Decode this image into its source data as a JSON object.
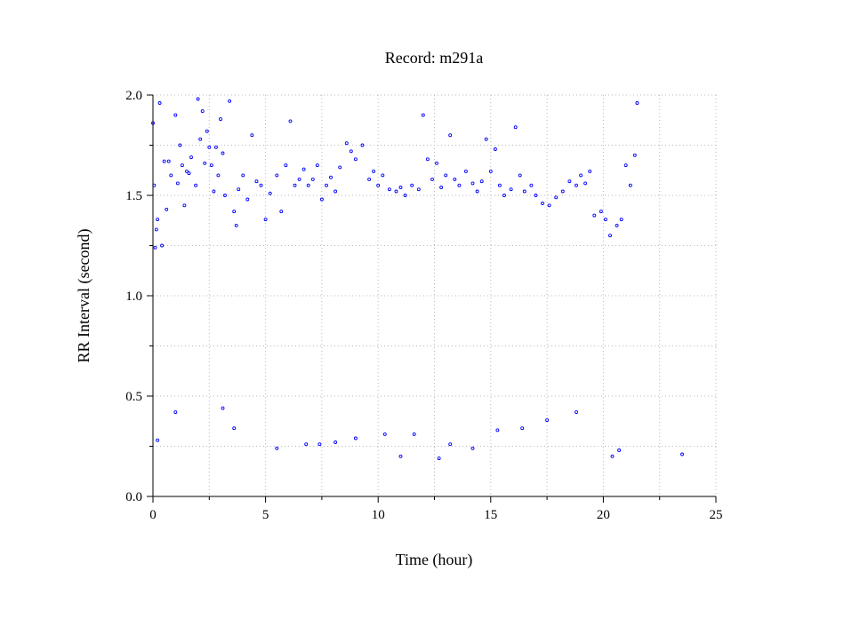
{
  "chart_data": {
    "type": "scatter",
    "title": "Record:  m291a",
    "xlabel": "Time (hour)",
    "ylabel": "RR Interval (second)",
    "xlim": [
      0,
      25
    ],
    "ylim": [
      0.0,
      2.0
    ],
    "x_ticks": [
      0,
      5,
      10,
      15,
      20,
      25
    ],
    "x_tick_labels": [
      "0",
      "5",
      "10",
      "15",
      "20",
      "25"
    ],
    "x_minor_ticks": [
      2.5,
      7.5,
      12.5,
      17.5,
      22.5
    ],
    "y_ticks": [
      0.0,
      0.5,
      1.0,
      1.5,
      2.0
    ],
    "y_tick_labels": [
      "0.0",
      "0.5",
      "1.0",
      "1.5",
      "2.0"
    ],
    "y_minor_ticks": [
      0.25,
      0.75,
      1.25,
      1.75
    ],
    "grid": true,
    "marker": "hollow-circle",
    "color": "#0000ff",
    "series": [
      {
        "points": [
          [
            0.0,
            1.86
          ],
          [
            0.05,
            1.55
          ],
          [
            0.1,
            1.24
          ],
          [
            0.15,
            1.33
          ],
          [
            0.2,
            1.38
          ],
          [
            0.3,
            1.96
          ],
          [
            0.4,
            1.25
          ],
          [
            0.5,
            1.67
          ],
          [
            0.6,
            1.43
          ],
          [
            0.7,
            1.67
          ],
          [
            0.8,
            1.6
          ],
          [
            1.0,
            1.9
          ],
          [
            1.1,
            1.56
          ],
          [
            1.2,
            1.75
          ],
          [
            1.3,
            1.65
          ],
          [
            1.4,
            1.45
          ],
          [
            1.5,
            1.62
          ],
          [
            1.6,
            1.61
          ],
          [
            1.7,
            1.69
          ],
          [
            1.9,
            1.55
          ],
          [
            2.0,
            1.98
          ],
          [
            2.1,
            1.78
          ],
          [
            2.2,
            1.92
          ],
          [
            2.3,
            1.66
          ],
          [
            2.4,
            1.82
          ],
          [
            2.5,
            1.74
          ],
          [
            2.6,
            1.65
          ],
          [
            2.7,
            1.52
          ],
          [
            2.8,
            1.74
          ],
          [
            2.9,
            1.6
          ],
          [
            3.0,
            1.88
          ],
          [
            3.1,
            1.71
          ],
          [
            3.2,
            1.5
          ],
          [
            3.4,
            1.97
          ],
          [
            3.6,
            1.42
          ],
          [
            3.7,
            1.35
          ],
          [
            3.8,
            1.53
          ],
          [
            4.0,
            1.6
          ],
          [
            4.2,
            1.48
          ],
          [
            4.4,
            1.8
          ],
          [
            4.6,
            1.57
          ],
          [
            4.8,
            1.55
          ],
          [
            5.0,
            1.38
          ],
          [
            5.2,
            1.51
          ],
          [
            5.5,
            1.6
          ],
          [
            5.7,
            1.42
          ],
          [
            5.9,
            1.65
          ],
          [
            6.1,
            1.87
          ],
          [
            6.3,
            1.55
          ],
          [
            6.5,
            1.58
          ],
          [
            6.7,
            1.63
          ],
          [
            6.9,
            1.55
          ],
          [
            7.1,
            1.58
          ],
          [
            7.3,
            1.65
          ],
          [
            7.5,
            1.48
          ],
          [
            7.7,
            1.55
          ],
          [
            7.9,
            1.59
          ],
          [
            8.1,
            1.52
          ],
          [
            8.3,
            1.64
          ],
          [
            8.6,
            1.76
          ],
          [
            8.8,
            1.72
          ],
          [
            9.0,
            1.68
          ],
          [
            9.3,
            1.75
          ],
          [
            9.6,
            1.58
          ],
          [
            9.8,
            1.62
          ],
          [
            10.0,
            1.55
          ],
          [
            10.2,
            1.6
          ],
          [
            10.5,
            1.53
          ],
          [
            10.8,
            1.52
          ],
          [
            11.0,
            1.54
          ],
          [
            11.2,
            1.5
          ],
          [
            11.5,
            1.55
          ],
          [
            11.8,
            1.53
          ],
          [
            12.0,
            1.9
          ],
          [
            12.2,
            1.68
          ],
          [
            12.4,
            1.58
          ],
          [
            12.6,
            1.66
          ],
          [
            12.8,
            1.54
          ],
          [
            13.0,
            1.6
          ],
          [
            13.2,
            1.8
          ],
          [
            13.4,
            1.58
          ],
          [
            13.6,
            1.55
          ],
          [
            13.9,
            1.62
          ],
          [
            14.2,
            1.56
          ],
          [
            14.4,
            1.52
          ],
          [
            14.6,
            1.57
          ],
          [
            14.8,
            1.78
          ],
          [
            15.0,
            1.62
          ],
          [
            15.2,
            1.73
          ],
          [
            15.4,
            1.55
          ],
          [
            15.6,
            1.5
          ],
          [
            15.9,
            1.53
          ],
          [
            16.1,
            1.84
          ],
          [
            16.3,
            1.6
          ],
          [
            16.5,
            1.52
          ],
          [
            16.8,
            1.55
          ],
          [
            17.0,
            1.5
          ],
          [
            17.3,
            1.46
          ],
          [
            17.6,
            1.45
          ],
          [
            17.9,
            1.49
          ],
          [
            18.2,
            1.52
          ],
          [
            18.5,
            1.57
          ],
          [
            18.8,
            1.55
          ],
          [
            19.0,
            1.6
          ],
          [
            19.2,
            1.56
          ],
          [
            19.4,
            1.62
          ],
          [
            19.6,
            1.4
          ],
          [
            19.9,
            1.42
          ],
          [
            20.1,
            1.38
          ],
          [
            20.3,
            1.3
          ],
          [
            20.6,
            1.35
          ],
          [
            20.8,
            1.38
          ],
          [
            21.0,
            1.65
          ],
          [
            21.2,
            1.55
          ],
          [
            21.4,
            1.7
          ],
          [
            21.5,
            1.96
          ],
          [
            23.5,
            0.21
          ],
          [
            0.2,
            0.28
          ],
          [
            1.0,
            0.42
          ],
          [
            3.1,
            0.44
          ],
          [
            3.6,
            0.34
          ],
          [
            5.5,
            0.24
          ],
          [
            6.8,
            0.26
          ],
          [
            7.4,
            0.26
          ],
          [
            8.1,
            0.27
          ],
          [
            9.0,
            0.29
          ],
          [
            10.3,
            0.31
          ],
          [
            11.0,
            0.2
          ],
          [
            11.6,
            0.31
          ],
          [
            12.7,
            0.19
          ],
          [
            13.2,
            0.26
          ],
          [
            14.2,
            0.24
          ],
          [
            15.3,
            0.33
          ],
          [
            16.4,
            0.34
          ],
          [
            17.5,
            0.38
          ],
          [
            18.8,
            0.42
          ],
          [
            20.4,
            0.2
          ],
          [
            20.7,
            0.23
          ]
        ]
      }
    ]
  }
}
